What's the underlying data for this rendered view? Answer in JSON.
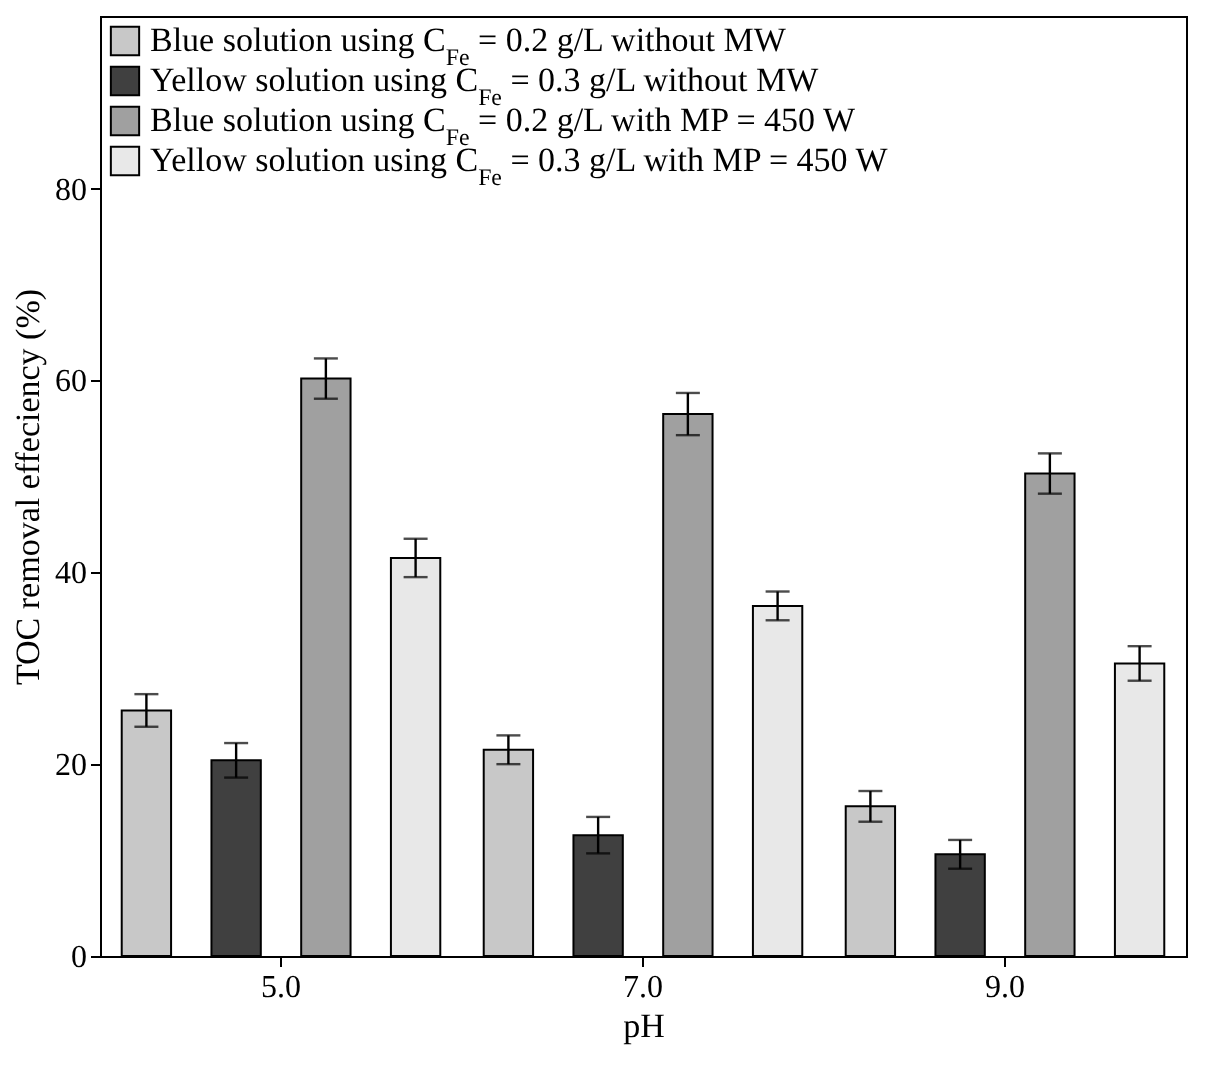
{
  "chart_data": {
    "type": "bar",
    "xlabel": "pH",
    "ylabel": "TOC removal effeciency (%)",
    "categories": [
      "5.0",
      "7.0",
      "9.0"
    ],
    "series": [
      {
        "name": "Blue solution using C$_{Fe}$ = 0.2 g/L without MW",
        "color": "#c8c8c8",
        "values": [
          25.6,
          21.5,
          15.6
        ],
        "errors": [
          1.7,
          1.5,
          1.6
        ]
      },
      {
        "name": "Yellow solution using C$_{Fe}$ = 0.3 g/L without MW",
        "color": "#404040",
        "values": [
          20.4,
          12.6,
          10.6
        ],
        "errors": [
          1.8,
          1.9,
          1.5
        ]
      },
      {
        "name": "Blue solution using C$_{Fe}$ = 0.2 g/L with MP = 450 W",
        "color": "#a0a0a0",
        "values": [
          60.2,
          56.5,
          50.3
        ],
        "errors": [
          2.1,
          2.2,
          2.1
        ]
      },
      {
        "name": "Yellow solution using C$_{Fe}$ = 0.3 g/L with MP = 450 W",
        "color": "#e8e8e8",
        "values": [
          41.5,
          36.5,
          30.5
        ],
        "errors": [
          2.0,
          1.5,
          1.8
        ]
      }
    ],
    "ylim": [
      0,
      98
    ],
    "yticks": [
      0,
      20,
      40,
      60,
      80
    ],
    "grid": false,
    "legend": "top left"
  }
}
